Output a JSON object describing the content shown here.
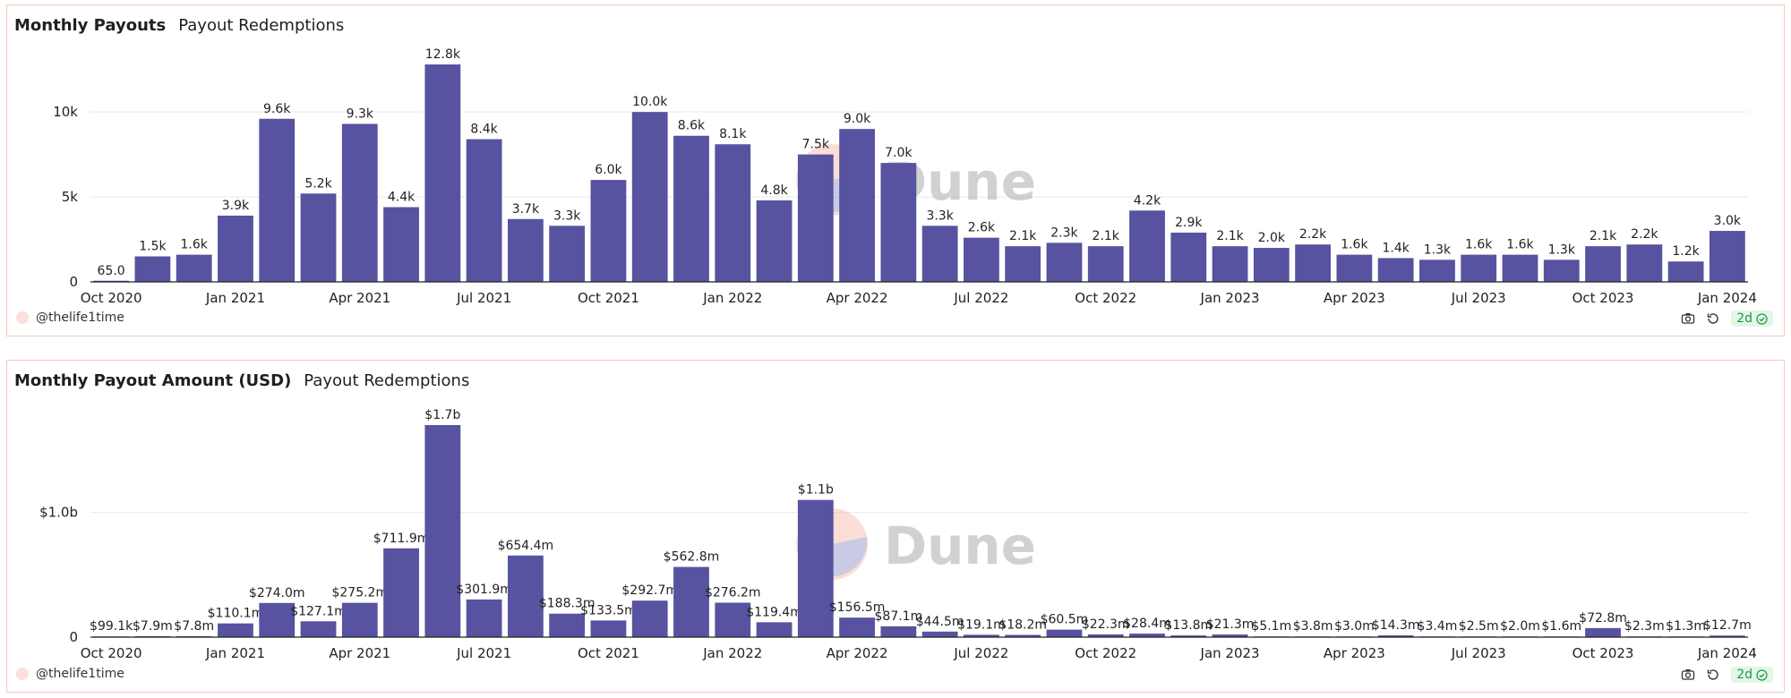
{
  "colors": {
    "bar": "#5753a0",
    "grid": "#e9e9ee",
    "axis": "#222222",
    "text": "#222222"
  },
  "watermark": "Dune",
  "panels": [
    {
      "title": "Monthly Payouts",
      "subtitle": "Payout Redemptions",
      "author": "@thelife1time",
      "freshness": "2d",
      "chart_data": {
        "type": "bar",
        "title": "Monthly Payouts",
        "xlabel": "",
        "ylabel": "",
        "ylim": [
          0,
          12800
        ],
        "yticks": [
          0,
          5000,
          10000
        ],
        "ytick_labels": [
          "0",
          "5k",
          "10k"
        ],
        "categories": [
          "2020-10",
          "2020-11",
          "2020-12",
          "2021-01",
          "2021-02",
          "2021-03",
          "2021-04",
          "2021-05",
          "2021-06",
          "2021-07",
          "2021-08",
          "2021-09",
          "2021-10",
          "2021-11",
          "2021-12",
          "2022-01",
          "2022-02",
          "2022-03",
          "2022-04",
          "2022-05",
          "2022-06",
          "2022-07",
          "2022-08",
          "2022-09",
          "2022-10",
          "2022-11",
          "2022-12",
          "2023-01",
          "2023-02",
          "2023-03",
          "2023-04",
          "2023-05",
          "2023-06",
          "2023-07",
          "2023-08",
          "2023-09",
          "2023-10",
          "2023-11",
          "2023-12",
          "2024-01"
        ],
        "values": [
          65,
          1500,
          1600,
          3900,
          9600,
          5200,
          9300,
          4400,
          12800,
          8400,
          3700,
          3300,
          6000,
          10000,
          8600,
          8100,
          4800,
          7500,
          9000,
          7000,
          3300,
          2600,
          2100,
          2300,
          2100,
          4200,
          2900,
          2100,
          2000,
          2200,
          1600,
          1400,
          1300,
          1600,
          1600,
          1300,
          2100,
          2200,
          1200,
          3000
        ],
        "labels": [
          "65.0",
          "1.5k",
          "1.6k",
          "3.9k",
          "9.6k",
          "5.2k",
          "9.3k",
          "4.4k",
          "12.8k",
          "8.4k",
          "3.7k",
          "3.3k",
          "6.0k",
          "10.0k",
          "8.6k",
          "8.1k",
          "4.8k",
          "7.5k",
          "9.0k",
          "7.0k",
          "3.3k",
          "2.6k",
          "2.1k",
          "2.3k",
          "2.1k",
          "4.2k",
          "2.9k",
          "2.1k",
          "2.0k",
          "2.2k",
          "1.6k",
          "1.4k",
          "1.3k",
          "1.6k",
          "1.6k",
          "1.3k",
          "2.1k",
          "2.2k",
          "1.2k",
          "3.0k"
        ],
        "xticks": [
          {
            "index": 0,
            "label": "Oct 2020"
          },
          {
            "index": 3,
            "label": "Jan 2021"
          },
          {
            "index": 6,
            "label": "Apr 2021"
          },
          {
            "index": 9,
            "label": "Jul 2021"
          },
          {
            "index": 12,
            "label": "Oct 2021"
          },
          {
            "index": 15,
            "label": "Jan 2022"
          },
          {
            "index": 18,
            "label": "Apr 2022"
          },
          {
            "index": 21,
            "label": "Jul 2022"
          },
          {
            "index": 24,
            "label": "Oct 2022"
          },
          {
            "index": 27,
            "label": "Jan 2023"
          },
          {
            "index": 30,
            "label": "Apr 2023"
          },
          {
            "index": 33,
            "label": "Jul 2023"
          },
          {
            "index": 36,
            "label": "Oct 2023"
          },
          {
            "index": 39,
            "label": "Jan 2024"
          }
        ],
        "grid": true
      }
    },
    {
      "title": "Monthly Payout Amount (USD)",
      "subtitle": "Payout Redemptions",
      "author": "@thelife1time",
      "freshness": "2d",
      "chart_data": {
        "type": "bar",
        "title": "Monthly Payout Amount (USD)",
        "xlabel": "",
        "ylabel": "",
        "ylim": [
          0,
          1700000000
        ],
        "yticks": [
          0,
          1000000000
        ],
        "ytick_labels": [
          "0",
          "$1.0b"
        ],
        "categories": [
          "2020-10",
          "2020-11",
          "2020-12",
          "2021-01",
          "2021-02",
          "2021-03",
          "2021-04",
          "2021-05",
          "2021-06",
          "2021-07",
          "2021-08",
          "2021-09",
          "2021-10",
          "2021-11",
          "2021-12",
          "2022-01",
          "2022-02",
          "2022-03",
          "2022-04",
          "2022-05",
          "2022-06",
          "2022-07",
          "2022-08",
          "2022-09",
          "2022-10",
          "2022-11",
          "2022-12",
          "2023-01",
          "2023-02",
          "2023-03",
          "2023-04",
          "2023-05",
          "2023-06",
          "2023-07",
          "2023-08",
          "2023-09",
          "2023-10",
          "2023-11",
          "2023-12",
          "2024-01"
        ],
        "values": [
          99100,
          7900000,
          7800000,
          110100000,
          274000000,
          127100000,
          275200000,
          711900000,
          1700000000,
          301900000,
          654400000,
          188300000,
          133500000,
          292700000,
          562800000,
          276200000,
          119400000,
          1100000000,
          156500000,
          87100000,
          44500000,
          19100000,
          18200000,
          60500000,
          22300000,
          28400000,
          13800000,
          21300000,
          5100000,
          3800000,
          3000000,
          14300000,
          3400000,
          2500000,
          2000000,
          1600000,
          72800000,
          2300000,
          1300000,
          12700000
        ],
        "labels": [
          "$99.1k",
          "$7.9m",
          "$7.8m",
          "$110.1m",
          "$274.0m",
          "$127.1m",
          "$275.2m",
          "$711.9m",
          "$1.7b",
          "$301.9m",
          "$654.4m",
          "$188.3m",
          "$133.5m",
          "$292.7m",
          "$562.8m",
          "$276.2m",
          "$119.4m",
          "$1.1b",
          "$156.5m",
          "$87.1m",
          "$44.5m",
          "$19.1m",
          "$18.2m",
          "$60.5m",
          "$22.3m",
          "$28.4m",
          "$13.8m",
          "$21.3m",
          "$5.1m",
          "$3.8m",
          "$3.0m",
          "$14.3m",
          "$3.4m",
          "$2.5m",
          "$2.0m",
          "$1.6m",
          "$72.8m",
          "$2.3m",
          "$1.3m",
          "$12.7m"
        ],
        "xticks": [
          {
            "index": 0,
            "label": "Oct 2020"
          },
          {
            "index": 3,
            "label": "Jan 2021"
          },
          {
            "index": 6,
            "label": "Apr 2021"
          },
          {
            "index": 9,
            "label": "Jul 2021"
          },
          {
            "index": 12,
            "label": "Oct 2021"
          },
          {
            "index": 15,
            "label": "Jan 2022"
          },
          {
            "index": 18,
            "label": "Apr 2022"
          },
          {
            "index": 21,
            "label": "Jul 2022"
          },
          {
            "index": 24,
            "label": "Oct 2022"
          },
          {
            "index": 27,
            "label": "Jan 2023"
          },
          {
            "index": 30,
            "label": "Apr 2023"
          },
          {
            "index": 33,
            "label": "Jul 2023"
          },
          {
            "index": 36,
            "label": "Oct 2023"
          },
          {
            "index": 39,
            "label": "Jan 2024"
          }
        ],
        "grid": true
      }
    }
  ]
}
